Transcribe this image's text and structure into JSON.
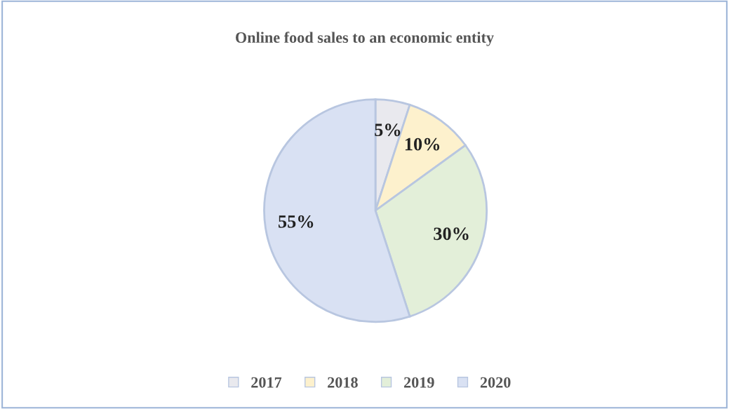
{
  "chart_data": {
    "type": "pie",
    "title": "Online food sales to an economic entity",
    "categories": [
      "2017",
      "2018",
      "2019",
      "2020"
    ],
    "values": [
      5,
      10,
      30,
      55
    ],
    "colors": [
      "#e9e9ee",
      "#fdf1cd",
      "#e3efd9",
      "#d9e1f3"
    ],
    "value_labels": [
      "5%",
      "10%",
      "30%",
      "55%"
    ],
    "legend": "bottom"
  }
}
